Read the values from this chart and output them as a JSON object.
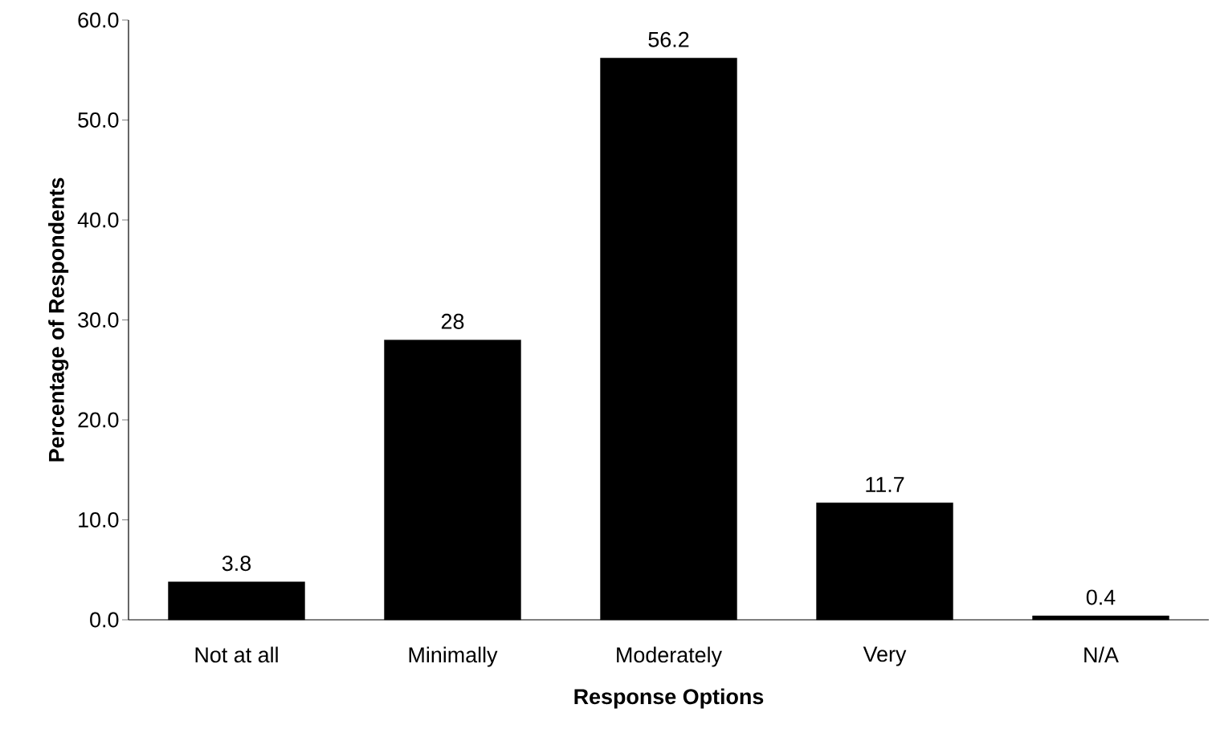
{
  "chart_data": {
    "type": "bar",
    "xlabel": "Response Options",
    "ylabel": "Percentage of Respondents",
    "categories": [
      "Not at all",
      "Minimally",
      "Moderately",
      "Very",
      "N/A"
    ],
    "values": [
      3.8,
      28,
      56.2,
      11.7,
      0.4
    ],
    "color": "#000000",
    "data_labels": true,
    "grid": false,
    "ylim": [
      0,
      60
    ],
    "yticks": [
      {
        "value": 0,
        "label": "0.0"
      },
      {
        "value": 10,
        "label": "10.0"
      },
      {
        "value": 20,
        "label": "20.0"
      },
      {
        "value": 30,
        "label": "30.0"
      },
      {
        "value": 40,
        "label": "40.0"
      },
      {
        "value": 50,
        "label": "50.0"
      },
      {
        "value": 60,
        "label": "60.0"
      }
    ]
  }
}
